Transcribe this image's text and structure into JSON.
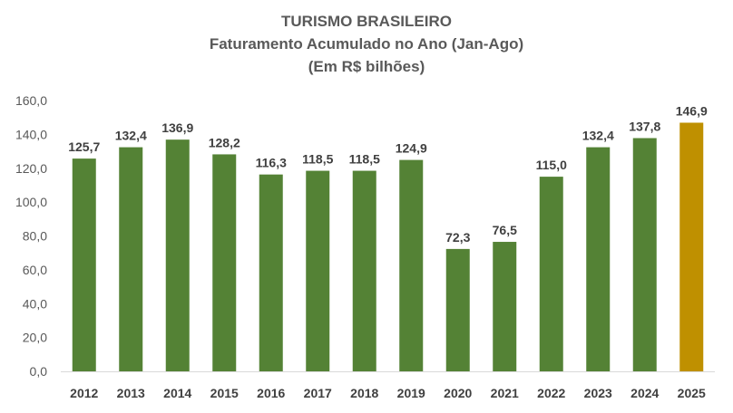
{
  "chart_data": {
    "type": "bar",
    "title": "TURISMO BRASILEIRO",
    "subtitle": "Faturamento Acumulado no Ano (Jan-Ago)",
    "unit_line": "(Em R$ bilhões)",
    "xlabel": "",
    "ylabel": "",
    "categories": [
      "2012",
      "2013",
      "2014",
      "2015",
      "2016",
      "2017",
      "2018",
      "2019",
      "2020",
      "2021",
      "2022",
      "2023",
      "2024",
      "2025"
    ],
    "values": [
      125.7,
      132.4,
      136.9,
      128.2,
      116.3,
      118.5,
      118.5,
      124.9,
      72.3,
      76.5,
      115.0,
      132.4,
      137.8,
      146.9
    ],
    "value_labels": [
      "125,7",
      "132,4",
      "136,9",
      "128,2",
      "116,3",
      "118,5",
      "118,5",
      "124,9",
      "72,3",
      "76,5",
      "115,0",
      "132,4",
      "137,8",
      "146,9"
    ],
    "ylim": [
      0,
      160
    ],
    "yticks": [
      0,
      20,
      40,
      60,
      80,
      100,
      120,
      140,
      160
    ],
    "ytick_labels": [
      "0,0",
      "20,0",
      "40,0",
      "60,0",
      "80,0",
      "100,0",
      "120,0",
      "140,0",
      "160,0"
    ],
    "grid": false,
    "legend": "none",
    "colors": {
      "default_bar": "#548235",
      "highlight_bar": "#BF9000",
      "highlight_category": "2025",
      "axis": "#D9D9D9"
    }
  }
}
